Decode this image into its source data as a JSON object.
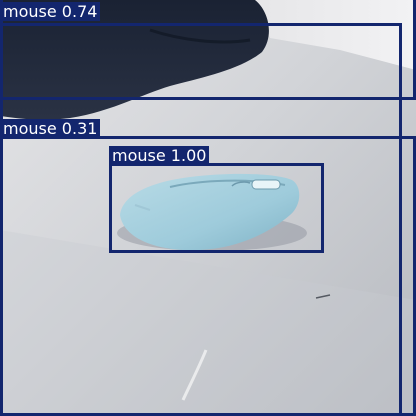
{
  "image": {
    "description": "Photo of a light blue wireless computer mouse on a gray desk with a dark bag in the upper-left, annotated with object detection boxes"
  },
  "detections": [
    {
      "label": "mouse",
      "score": "0.74",
      "color": "#13266e"
    },
    {
      "label": "mouse",
      "score": "0.31",
      "color": "#13266e"
    },
    {
      "label": "mouse",
      "score": "1.00",
      "color": "#13266e"
    }
  ]
}
